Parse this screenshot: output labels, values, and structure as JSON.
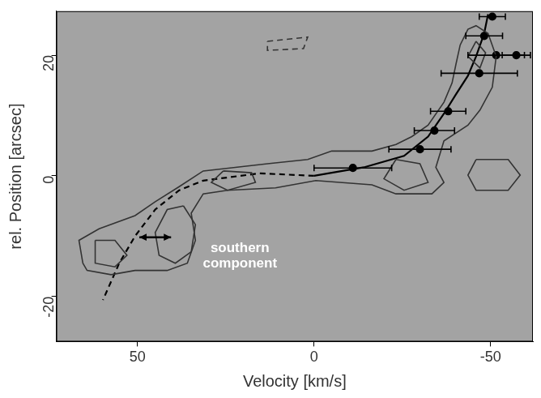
{
  "chart_data": {
    "type": "scatter",
    "x_label": "Velocity [km/s]",
    "y_label": "rel. Position [arcsec]",
    "xlim": [
      73,
      -62
    ],
    "ylim": [
      -27.5,
      27.3
    ],
    "xticks": [
      50,
      0,
      -50
    ],
    "yticks": [
      -20,
      0,
      20
    ],
    "grid": false,
    "series": [
      {
        "type": "contour",
        "color": "#333333",
        "line_style": "solid",
        "x": [
          65.5,
          66.6,
          60.9,
          50.7,
          45,
          38.2,
          31.4,
          22.3,
          13.2,
          1.8,
          -5,
          -16.4,
          -23.2,
          -27.7,
          -32.3,
          -36.8,
          -39.1,
          -40.2,
          -41.4,
          -43.6,
          -45.9,
          -49.3,
          -51.6,
          -50.5,
          -47,
          -43.6,
          -36.8,
          -34.5,
          -36.8,
          -33.4,
          -23.2,
          -16.4,
          -7.3,
          -0.5,
          10.9,
          24.5,
          31.4,
          34.8,
          33.6,
          35.9,
          41.6,
          50.7,
          57.5,
          64.3
        ],
        "y": [
          -14.5,
          -10.7,
          -8.8,
          -6.6,
          -4.3,
          -1.8,
          0.8,
          1.4,
          2.0,
          2.7,
          4.1,
          4.1,
          5.2,
          6.5,
          8.4,
          12.2,
          15.4,
          18.5,
          21.7,
          24.3,
          24.9,
          23.6,
          19.8,
          14.7,
          10.9,
          8.4,
          5.8,
          1.4,
          -1.1,
          -3.0,
          -3.0,
          -1.5,
          -1.1,
          -0.8,
          -2.0,
          -2.4,
          -3.0,
          -6.2,
          -10.7,
          -14.5,
          -15.7,
          -15.7,
          -16.4,
          -15.7
        ]
      },
      {
        "type": "contour",
        "color": "#333333",
        "line_style": "solid",
        "x": [
          37,
          33.6,
          34.8,
          39.3,
          43.9,
          45,
          41.6
        ],
        "y": [
          -5,
          -8.1,
          -12.6,
          -14.5,
          -13.2,
          -9.4,
          -5.6
        ]
      },
      {
        "type": "contour",
        "color": "#333333",
        "line_style": "solid",
        "x": [
          62,
          56.4,
          53,
          56.4,
          62
        ],
        "y": [
          -10.7,
          -10.7,
          -13.2,
          -15.1,
          -14.5
        ]
      },
      {
        "type": "contour",
        "color": "#333333",
        "line_style": "solid",
        "x": [
          25.7,
          17.7,
          16.6,
          24.5,
          29.1
        ],
        "y": [
          0.8,
          0.5,
          -1.1,
          -2.4,
          -1.1
        ]
      },
      {
        "type": "contour",
        "color": "#333333",
        "line_style": "solid",
        "x": [
          -23.2,
          -30,
          -32.3,
          -25.5,
          -19.8
        ],
        "y": [
          2.7,
          2.0,
          -1.1,
          -2.4,
          -0.5
        ]
      },
      {
        "type": "contour",
        "color": "#333333",
        "line_style": "solid",
        "x": [
          -45.9,
          -55,
          -58.4,
          -55,
          -45.9,
          -43.6
        ],
        "y": [
          2.7,
          2.7,
          0.1,
          -2.4,
          -2.4,
          0.1
        ]
      },
      {
        "type": "contour",
        "color": "#333333",
        "line_style": "solid",
        "x": [
          -45.9,
          -48.6,
          -47,
          -43.6
        ],
        "y": [
          22.3,
          20.4,
          17.9,
          19.8
        ]
      },
      {
        "type": "contour",
        "color": "#333333",
        "line_style": "dashed",
        "x": [
          13.2,
          1.8,
          3,
          13.2
        ],
        "y": [
          22.3,
          23,
          21.1,
          20.8
        ]
      },
      {
        "type": "line",
        "color": "#000000",
        "line_style": "dashed",
        "x": [
          0,
          15.5,
          31.4,
          38.2,
          45,
          50.7,
          55.2,
          59.8
        ],
        "y": [
          0,
          0.4,
          -0.8,
          -2.4,
          -5.6,
          -10,
          -14.5,
          -20.6
        ]
      },
      {
        "type": "line",
        "color": "#000000",
        "line_style": "solid",
        "x": [
          0,
          -5,
          -14.1,
          -25.5,
          -32.3,
          -36.8,
          -40.2,
          -43.6,
          -45.9,
          -48.2,
          -49.3
        ],
        "y": [
          0,
          0.5,
          1.4,
          3.3,
          6.5,
          10.3,
          13.5,
          16.6,
          19.8,
          23.6,
          26.8
        ]
      },
      {
        "type": "scatter",
        "color": "#000000",
        "marker": "circle",
        "x": [
          -50.5,
          -48.2,
          -51.6,
          -57.3,
          -46.8,
          -38,
          -34.1,
          -30,
          -11
        ],
        "y": [
          26.4,
          23.2,
          20.0,
          20.0,
          17.0,
          10.7,
          7.5,
          4.4,
          1.3
        ],
        "x_error": [
          3.7,
          5.2,
          8,
          4,
          10.8,
          5,
          5.7,
          8.8,
          11
        ]
      }
    ],
    "arrows": [
      {
        "x": [
          49.5,
          40.5
        ],
        "y": [
          -10.2,
          -10.2
        ],
        "color": "#000000"
      }
    ],
    "annotations": [
      {
        "text": "southern component",
        "x": 21,
        "y": -13.3,
        "color": "#ffffff"
      }
    ]
  }
}
